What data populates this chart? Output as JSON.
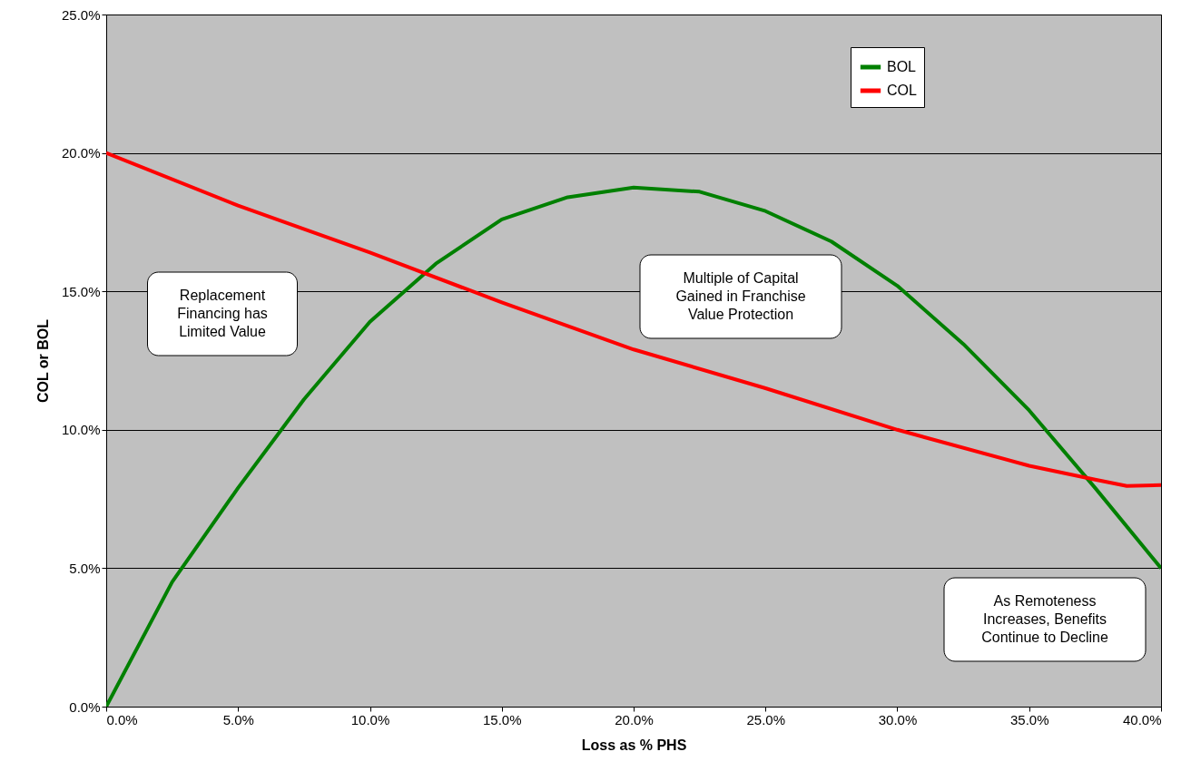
{
  "chart_data": {
    "type": "line",
    "xlabel": "Loss as % PHS",
    "ylabel": "COL or BOL",
    "xlim": [
      0,
      0.4
    ],
    "ylim": [
      0,
      0.25
    ],
    "xticks": [
      {
        "value": 0,
        "label": "0.0%"
      },
      {
        "value": 0.05,
        "label": "5.0%"
      },
      {
        "value": 0.1,
        "label": "10.0%"
      },
      {
        "value": 0.15,
        "label": "15.0%"
      },
      {
        "value": 0.2,
        "label": "20.0%"
      },
      {
        "value": 0.25,
        "label": "25.0%"
      },
      {
        "value": 0.3,
        "label": "30.0%"
      },
      {
        "value": 0.35,
        "label": "35.0%"
      },
      {
        "value": 0.4,
        "label": "40.0%"
      }
    ],
    "yticks": [
      {
        "value": 0,
        "label": "0.0%"
      },
      {
        "value": 0.05,
        "label": "5.0%"
      },
      {
        "value": 0.1,
        "label": "10.0%"
      },
      {
        "value": 0.15,
        "label": "15.0%"
      },
      {
        "value": 0.2,
        "label": "20.0%"
      },
      {
        "value": 0.25,
        "label": "25.0%"
      }
    ],
    "grid": "y",
    "legend": "top right",
    "marker": "none",
    "line_style": "solid",
    "series": [
      {
        "name": "BOL",
        "color": "#008000",
        "x": [
          0,
          0.025,
          0.05,
          0.075,
          0.1,
          0.125,
          0.15,
          0.175,
          0.2,
          0.225,
          0.25,
          0.275,
          0.3,
          0.325,
          0.35,
          0.375,
          0.4
        ],
        "values": [
          0,
          0.045,
          0.079,
          0.111,
          0.139,
          0.16,
          0.176,
          0.184,
          0.1875,
          0.186,
          0.179,
          0.168,
          0.152,
          0.131,
          0.107,
          0.079,
          0.05
        ]
      },
      {
        "name": "COL",
        "color": "#ff0000",
        "x": [
          0,
          0.05,
          0.1,
          0.15,
          0.2,
          0.25,
          0.3,
          0.35,
          0.375,
          0.387,
          0.4
        ],
        "values": [
          0.2,
          0.181,
          0.164,
          0.146,
          0.129,
          0.115,
          0.1,
          0.087,
          0.082,
          0.0797,
          0.08
        ]
      }
    ],
    "annotations": [
      "Replacement\nFinancing has\nLimited Value",
      "Multiple of Capital\nGained in Franchise\nValue Protection",
      "As Remoteness\nIncreases, Benefits\nContinue to Decline"
    ]
  }
}
